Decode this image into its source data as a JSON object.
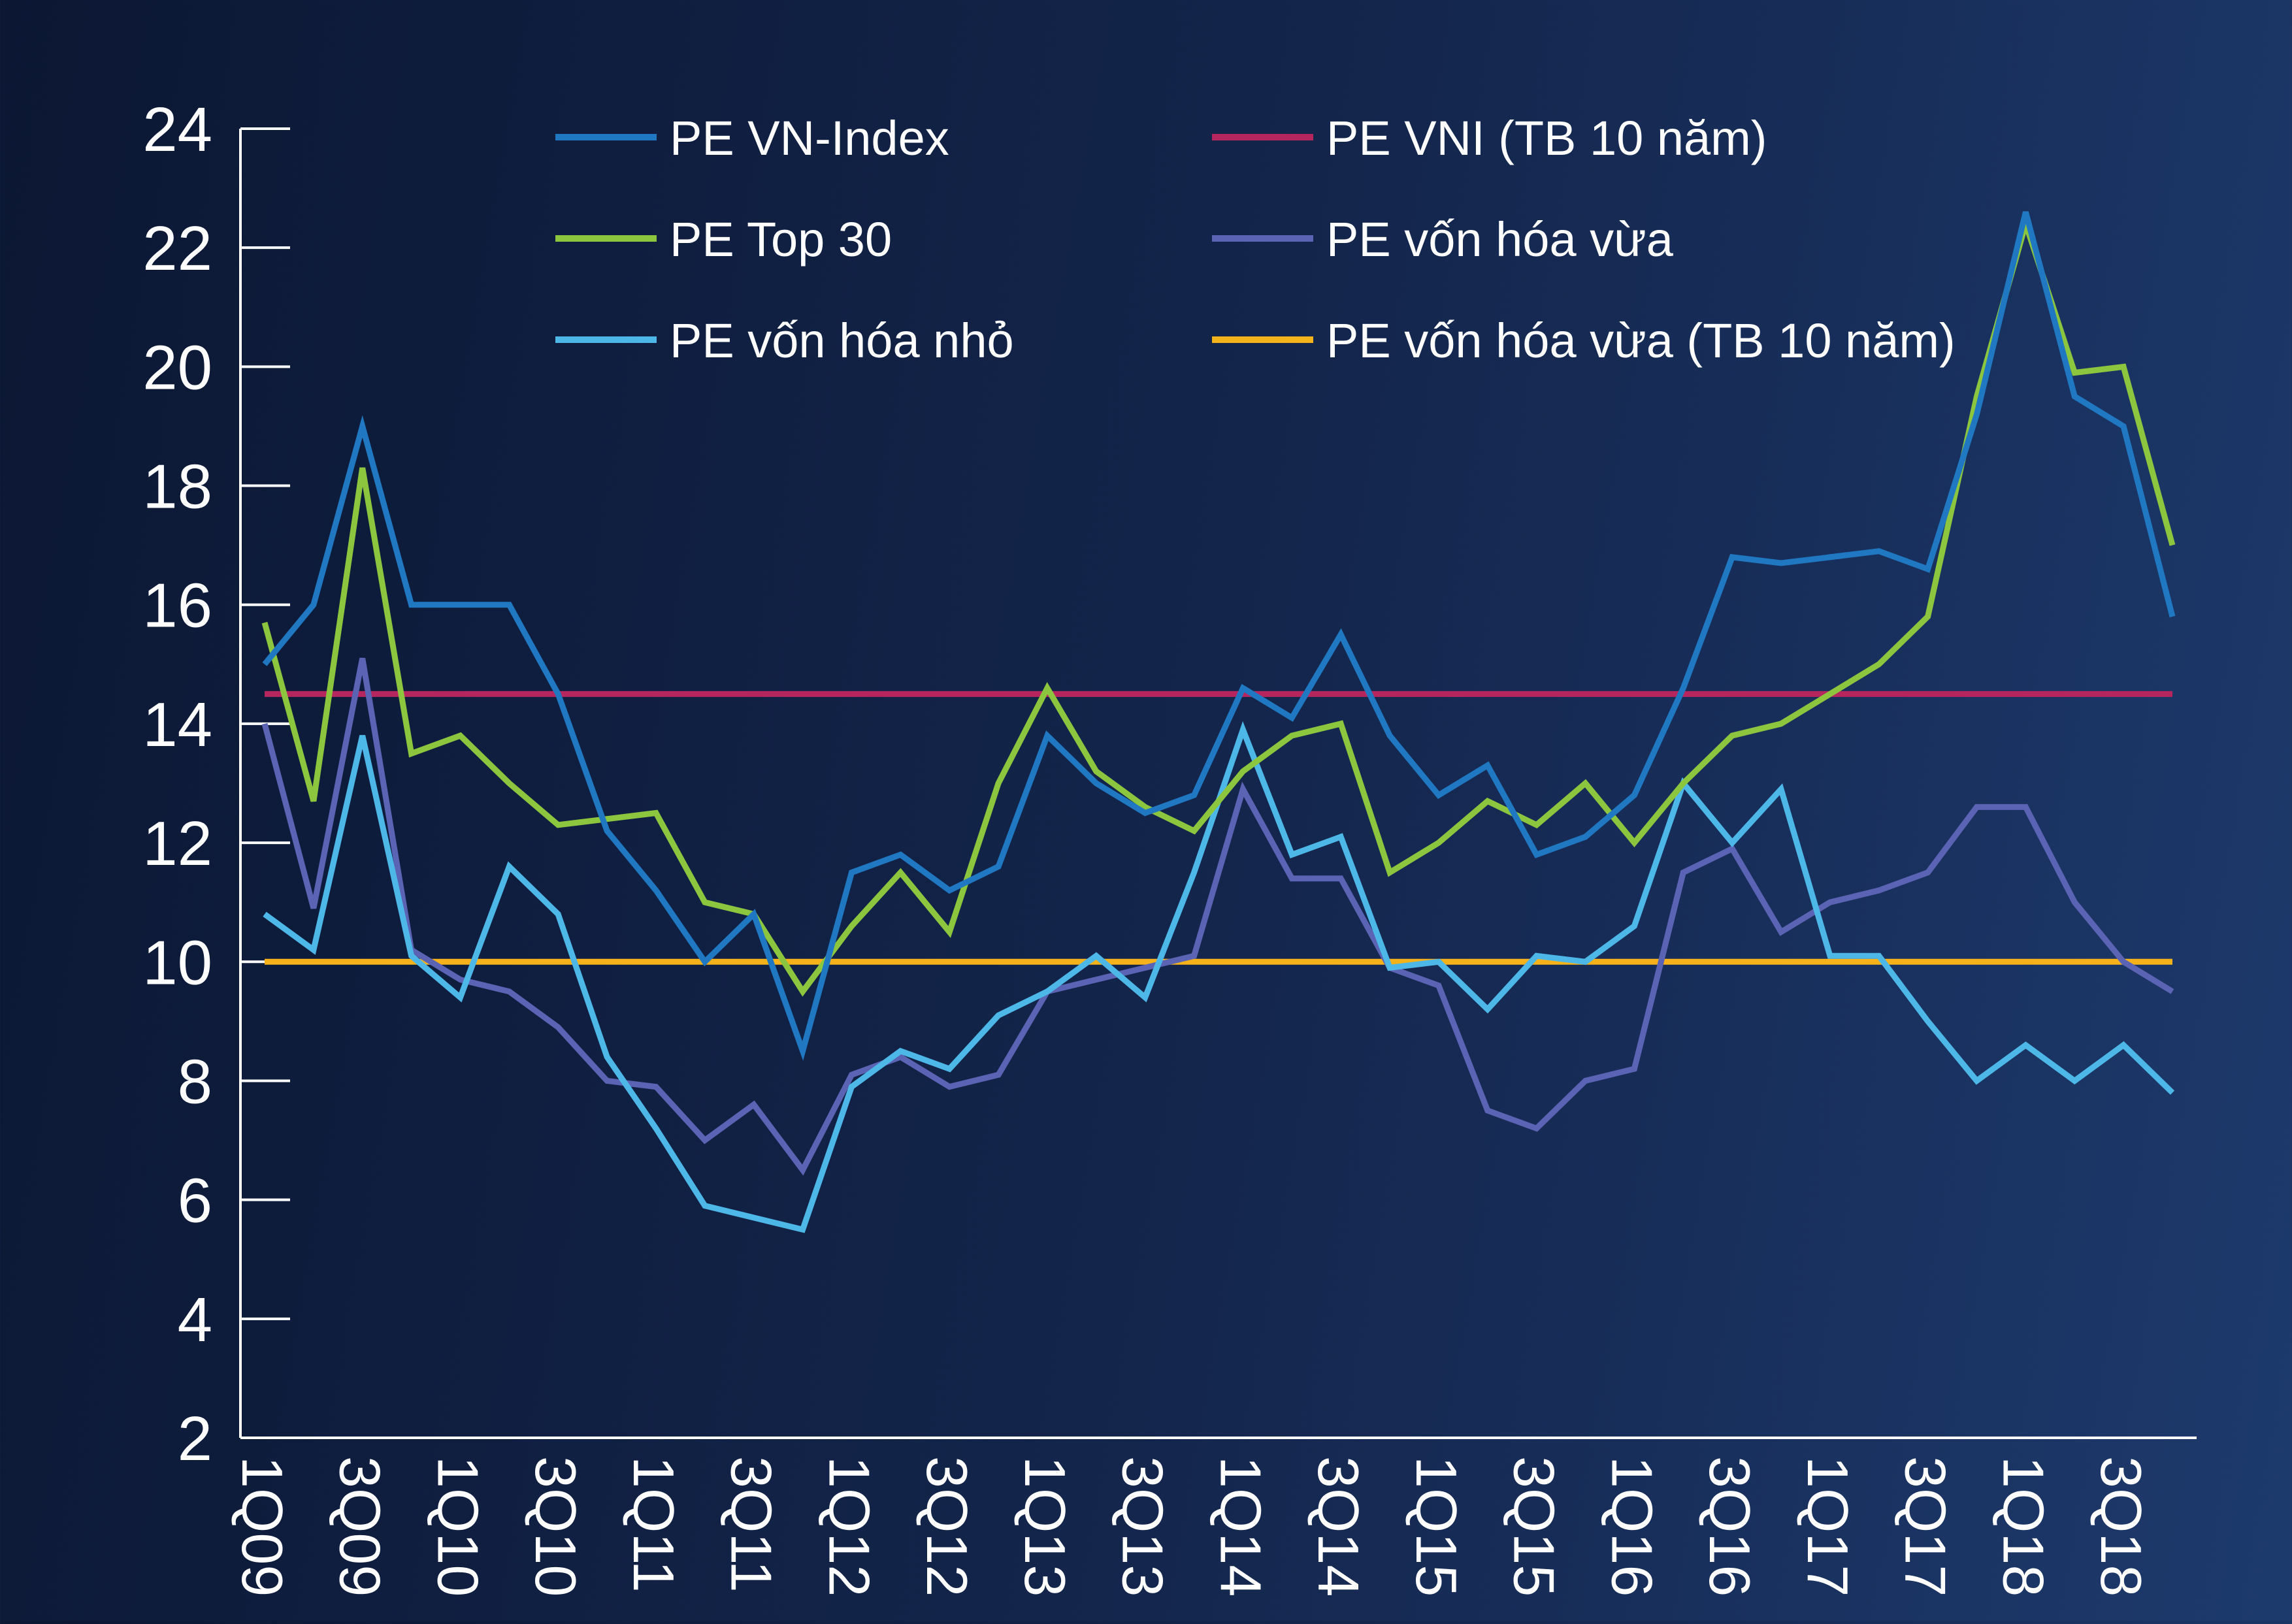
{
  "chart_data": {
    "type": "line",
    "title": "",
    "xlabel": "",
    "ylabel": "",
    "ylim": [
      2,
      24
    ],
    "y_ticks": [
      2,
      4,
      6,
      8,
      10,
      12,
      14,
      16,
      18,
      20,
      22,
      24
    ],
    "grid": false,
    "legend_position": "top",
    "x": [
      "1Q09",
      "2Q09",
      "3Q09",
      "4Q09",
      "1Q10",
      "2Q10",
      "3Q10",
      "4Q10",
      "1Q11",
      "2Q11",
      "3Q11",
      "4Q11",
      "1Q12",
      "2Q12",
      "3Q12",
      "4Q12",
      "1Q13",
      "2Q13",
      "3Q13",
      "4Q13",
      "1Q14",
      "2Q14",
      "3Q14",
      "4Q14",
      "1Q15",
      "2Q15",
      "3Q15",
      "4Q15",
      "1Q16",
      "2Q16",
      "3Q16",
      "4Q16",
      "1Q17",
      "2Q17",
      "3Q17",
      "4Q17",
      "1Q18",
      "2Q18",
      "3Q18",
      "4Q18"
    ],
    "x_tick_labels": [
      "1Q09",
      "3Q09",
      "1Q10",
      "3Q10",
      "1Q11",
      "3Q11",
      "1Q12",
      "3Q12",
      "1Q13",
      "3Q13",
      "1Q14",
      "3Q14",
      "1Q15",
      "3Q15",
      "1Q16",
      "3Q16",
      "1Q17",
      "3Q17",
      "1Q18",
      "3Q18"
    ],
    "series": [
      {
        "name": "PE VN-Index",
        "color": "#1f78c1",
        "values": [
          15,
          16,
          19,
          16,
          16,
          16,
          14.5,
          12.2,
          11.2,
          10,
          10.8,
          8.5,
          11.5,
          11.8,
          11.2,
          11.6,
          13.8,
          13,
          12.5,
          12.8,
          14.6,
          14.1,
          15.5,
          13.8,
          12.8,
          13.3,
          11.8,
          12.1,
          12.8,
          14.6,
          16.8,
          16.7,
          16.8,
          16.9,
          16.6,
          19.2,
          22.6,
          19.5,
          19,
          15.8
        ]
      },
      {
        "name": "PE Top 30",
        "color": "#8cc63f",
        "values": [
          15.7,
          12.7,
          18.3,
          13.5,
          13.8,
          13,
          12.3,
          12.4,
          12.5,
          11,
          10.8,
          9.5,
          10.6,
          11.5,
          10.5,
          13,
          14.6,
          13.2,
          12.6,
          12.2,
          13.2,
          13.8,
          14,
          11.5,
          12,
          12.7,
          12.3,
          13,
          12,
          13,
          13.8,
          14,
          14.5,
          15,
          15.8,
          19.5,
          22.4,
          19.9,
          20,
          17
        ]
      },
      {
        "name": "PE vốn hóa nhỏ",
        "color": "#4db8e8",
        "values": [
          10.8,
          10.2,
          13.8,
          10.1,
          9.4,
          11.6,
          10.8,
          8.4,
          7.2,
          5.9,
          5.7,
          5.5,
          7.9,
          8.5,
          8.2,
          9.1,
          9.5,
          10.1,
          9.4,
          11.5,
          13.9,
          11.8,
          12.1,
          9.9,
          10,
          9.2,
          10.1,
          10,
          10.6,
          13,
          12,
          12.9,
          10.1,
          10.1,
          9,
          8,
          8.6,
          8,
          8.6,
          7.8
        ]
      },
      {
        "name": "PE VNI (TB 10 năm)",
        "color": "#b5265f",
        "values": [
          14.5,
          14.5,
          14.5,
          14.5,
          14.5,
          14.5,
          14.5,
          14.5,
          14.5,
          14.5,
          14.5,
          14.5,
          14.5,
          14.5,
          14.5,
          14.5,
          14.5,
          14.5,
          14.5,
          14.5,
          14.5,
          14.5,
          14.5,
          14.5,
          14.5,
          14.5,
          14.5,
          14.5,
          14.5,
          14.5,
          14.5,
          14.5,
          14.5,
          14.5,
          14.5,
          14.5,
          14.5,
          14.5,
          14.5,
          14.5
        ]
      },
      {
        "name": "PE vốn hóa vừa",
        "color": "#5b63b4",
        "values": [
          14,
          10.9,
          15.1,
          10.2,
          9.7,
          9.5,
          8.9,
          8,
          7.9,
          7,
          7.6,
          6.5,
          8.1,
          8.4,
          7.9,
          8.1,
          9.5,
          9.7,
          9.9,
          10.1,
          12.9,
          11.4,
          11.4,
          9.9,
          9.6,
          7.5,
          7.2,
          8,
          8.2,
          11.5,
          11.9,
          10.5,
          11,
          11.2,
          11.5,
          12.6,
          12.6,
          11,
          10,
          9.5
        ]
      },
      {
        "name": "PE vốn hóa vừa (TB 10 năm)",
        "color": "#f6b21b",
        "values": [
          10,
          10,
          10,
          10,
          10,
          10,
          10,
          10,
          10,
          10,
          10,
          10,
          10,
          10,
          10,
          10,
          10,
          10,
          10,
          10,
          10,
          10,
          10,
          10,
          10,
          10,
          10,
          10,
          10,
          10,
          10,
          10,
          10,
          10,
          10,
          10,
          10,
          10,
          10,
          10
        ]
      }
    ],
    "legend_order": [
      0,
      3,
      1,
      4,
      2,
      5
    ]
  }
}
